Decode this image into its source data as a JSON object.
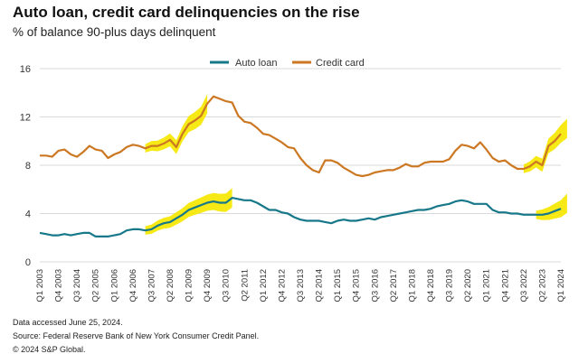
{
  "title": "Auto loan, credit card delinquencies on the rise",
  "subtitle": "% of balance 90-plus days delinquent",
  "footnotes": [
    "Data accessed June 25, 2024.",
    "Source: Federal Reserve Bank of New York Consumer Credit Panel.",
    "© 2024 S&P Global."
  ],
  "colors": {
    "auto_loan": "#17788a",
    "credit_card": "#cc7722",
    "highlight": "#f5e80a"
  },
  "chart_data": {
    "type": "line",
    "title": "Auto loan, credit card delinquencies on the rise",
    "ylabel": "% of balance 90-plus days delinquent",
    "ylim": [
      0,
      16
    ],
    "yticks": [
      0,
      4,
      8,
      12,
      16
    ],
    "x_start_quarter": "Q1 2003",
    "x_tick_labels": [
      "Q1 2003",
      "Q4 2003",
      "Q3 2004",
      "Q2 2005",
      "Q1 2006",
      "Q4 2006",
      "Q3 2007",
      "Q2 2008",
      "Q1 2009",
      "Q4 2009",
      "Q3 2010",
      "Q2 2011",
      "Q1 2012",
      "Q4 2012",
      "Q3 2013",
      "Q2 2014",
      "Q1 2015",
      "Q4 2015",
      "Q3 2016",
      "Q2 2017",
      "Q1 2018",
      "Q4 2018",
      "Q3 2019",
      "Q2 2020",
      "Q1 2021",
      "Q4 2021",
      "Q3 2022",
      "Q2 2023",
      "Q1 2024"
    ],
    "x_tick_indices": [
      0,
      3,
      6,
      9,
      12,
      15,
      18,
      21,
      24,
      27,
      30,
      33,
      36,
      39,
      42,
      45,
      48,
      51,
      54,
      57,
      60,
      63,
      66,
      69,
      72,
      75,
      78,
      81,
      84
    ],
    "legend_position": "top-center",
    "series": [
      {
        "name": "Auto loan",
        "values": [
          2.4,
          2.3,
          2.2,
          2.2,
          2.3,
          2.2,
          2.3,
          2.4,
          2.4,
          2.1,
          2.1,
          2.1,
          2.2,
          2.3,
          2.6,
          2.7,
          2.7,
          2.6,
          2.7,
          3.0,
          3.2,
          3.3,
          3.6,
          3.9,
          4.3,
          4.5,
          4.7,
          4.9,
          5.0,
          4.9,
          4.9,
          5.3,
          5.2,
          5.1,
          5.1,
          4.9,
          4.6,
          4.3,
          4.3,
          4.1,
          4.0,
          3.7,
          3.5,
          3.4,
          3.4,
          3.4,
          3.3,
          3.2,
          3.4,
          3.5,
          3.4,
          3.4,
          3.5,
          3.6,
          3.5,
          3.7,
          3.8,
          3.9,
          4.0,
          4.1,
          4.2,
          4.3,
          4.3,
          4.4,
          4.6,
          4.7,
          4.8,
          5.0,
          5.1,
          5.0,
          4.8,
          4.8,
          4.8,
          4.3,
          4.1,
          4.1,
          4.0,
          4.0,
          3.9,
          3.9,
          3.9,
          3.9,
          4.0,
          4.2,
          4.4
        ]
      },
      {
        "name": "Credit card",
        "values": [
          8.8,
          8.8,
          8.7,
          9.2,
          9.3,
          8.9,
          8.7,
          9.1,
          9.6,
          9.3,
          9.2,
          8.6,
          8.9,
          9.1,
          9.5,
          9.7,
          9.6,
          9.4,
          9.6,
          9.6,
          9.8,
          10.1,
          9.5,
          10.6,
          11.4,
          11.7,
          12.1,
          13.1,
          13.7,
          13.5,
          13.3,
          13.2,
          12.1,
          11.6,
          11.5,
          11.1,
          10.6,
          10.5,
          10.2,
          9.9,
          9.5,
          9.4,
          8.6,
          8.0,
          7.6,
          7.4,
          8.4,
          8.4,
          8.2,
          7.8,
          7.5,
          7.2,
          7.1,
          7.2,
          7.4,
          7.5,
          7.6,
          7.6,
          7.8,
          8.1,
          7.9,
          7.9,
          8.2,
          8.3,
          8.3,
          8.3,
          8.5,
          9.2,
          9.7,
          9.6,
          9.4,
          9.9,
          9.3,
          8.6,
          8.3,
          8.4,
          8.0,
          7.7,
          7.7,
          7.9,
          8.3,
          8.0,
          9.6,
          10.0,
          10.6
        ]
      }
    ],
    "highlights": [
      {
        "series": "Credit card",
        "from_index": 17,
        "to_index": 27
      },
      {
        "series": "Auto loan",
        "from_index": 17,
        "to_index": 31
      },
      {
        "series": "Credit card",
        "from_index": 78,
        "to_index": 85
      },
      {
        "series": "Auto loan",
        "from_index": 80,
        "to_index": 85
      }
    ]
  }
}
